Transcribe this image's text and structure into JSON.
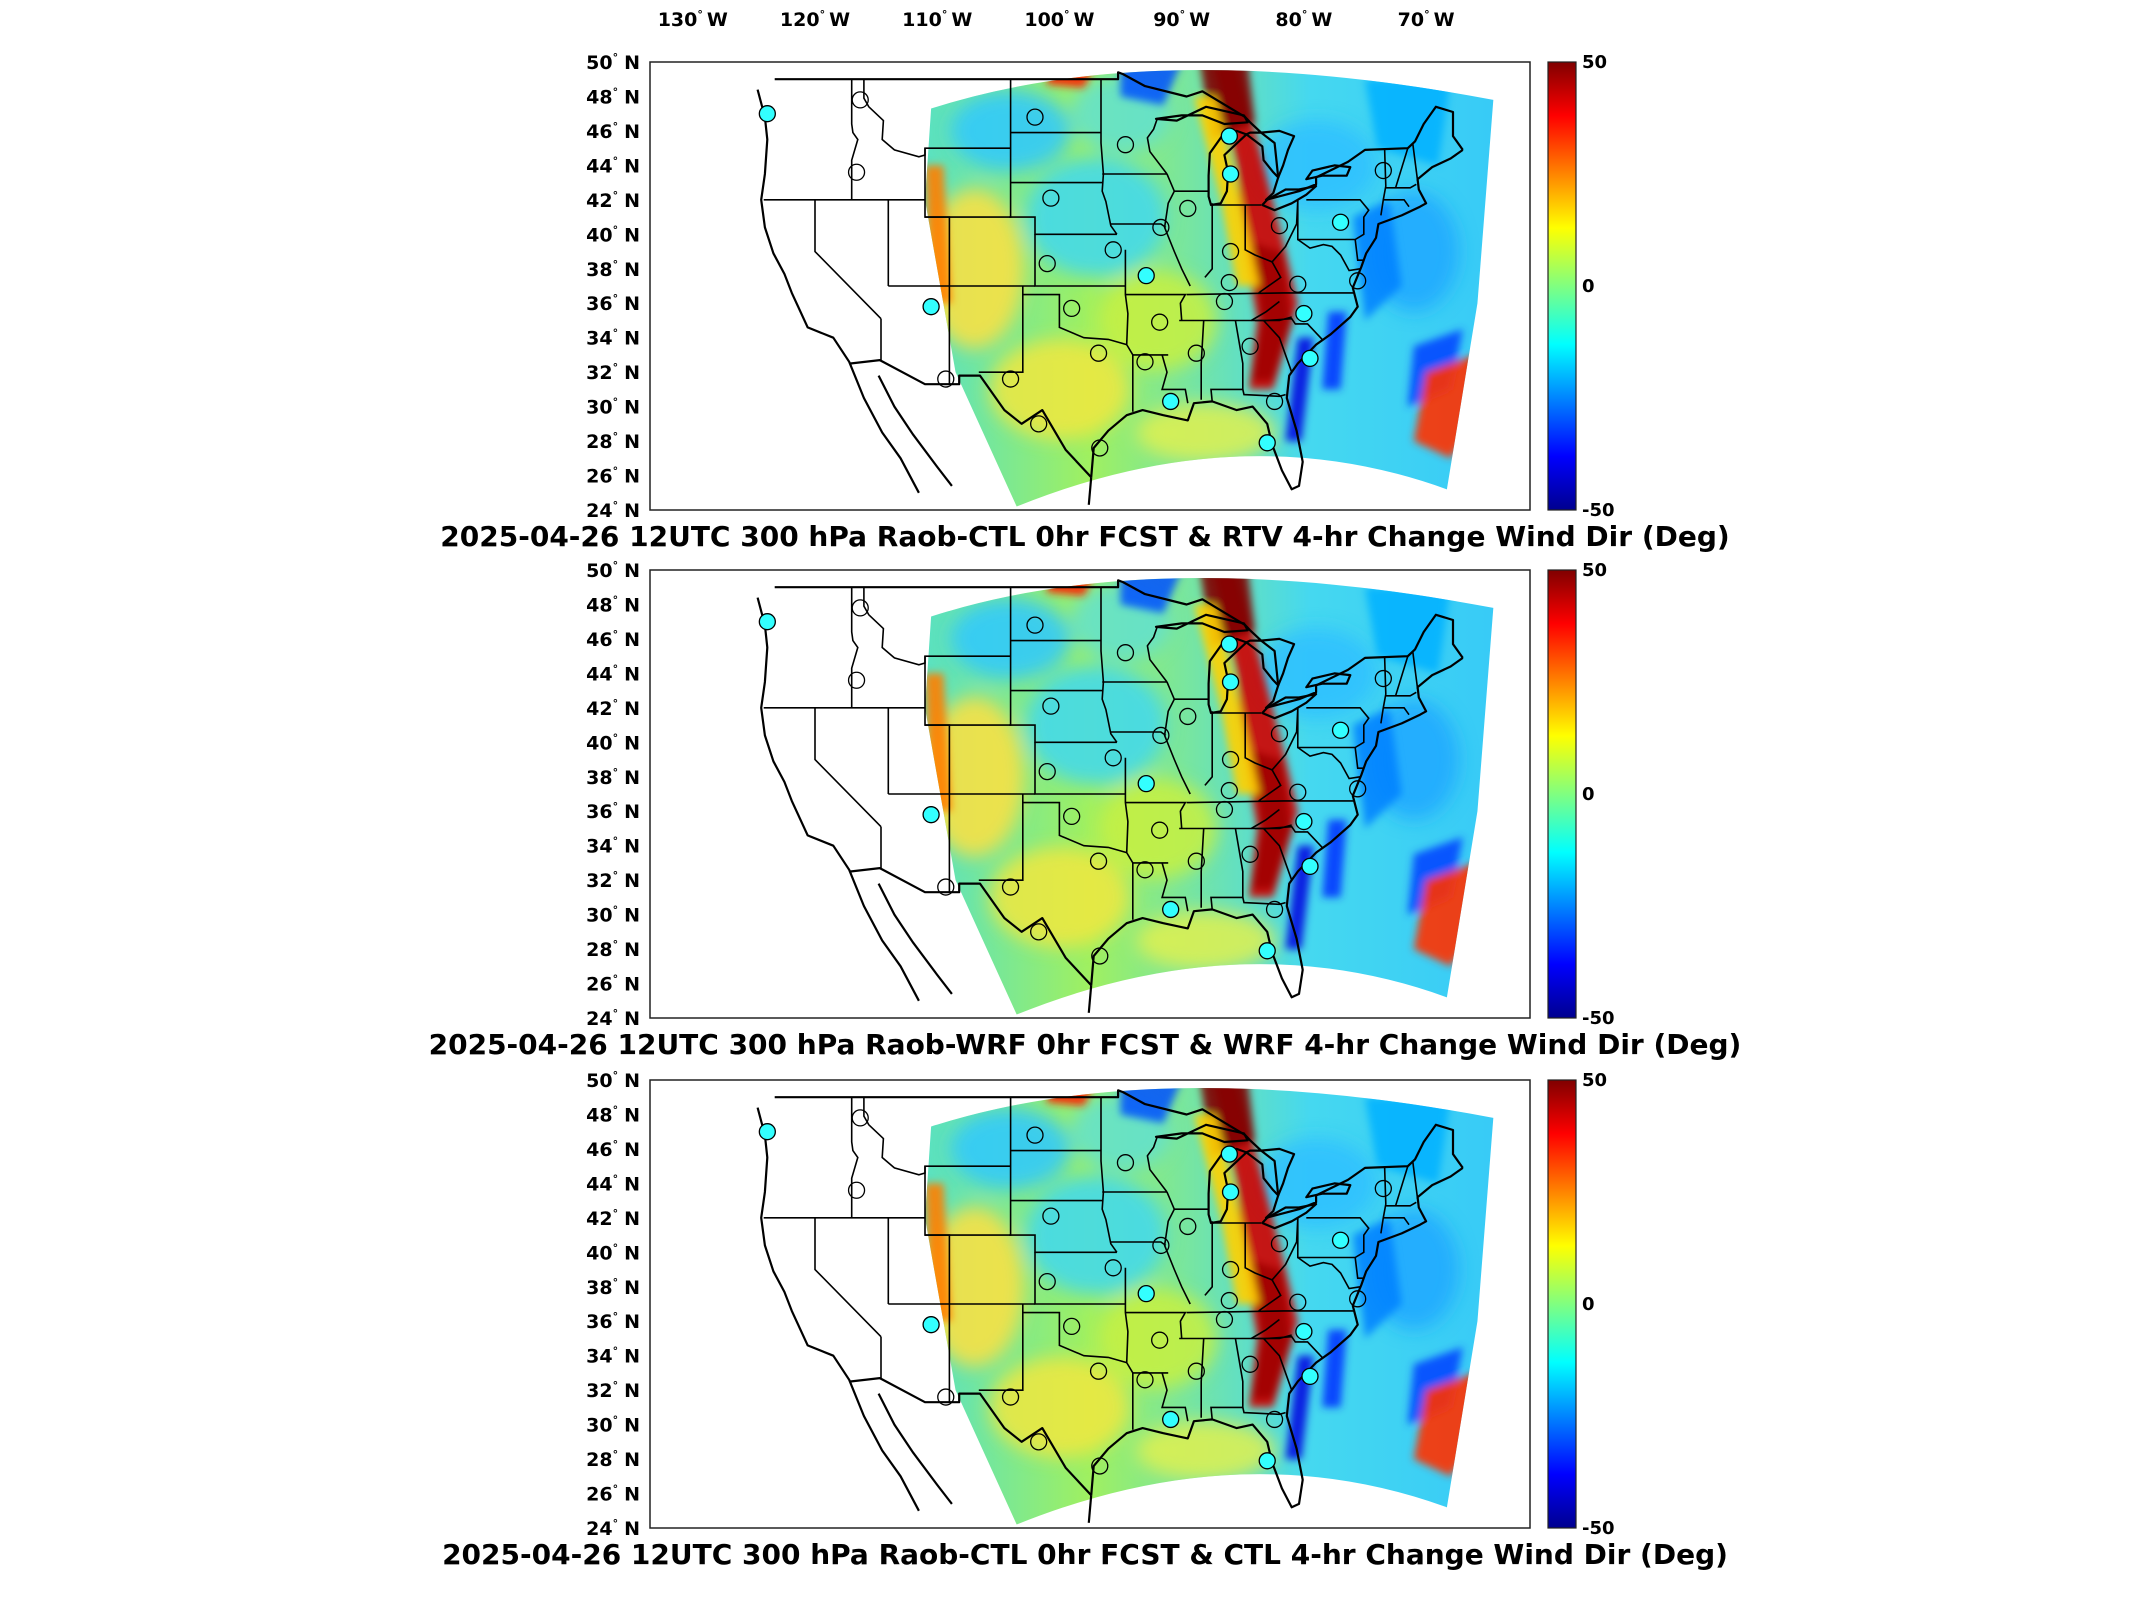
{
  "figure": {
    "lon_axis": {
      "labels": [
        {
          "deg": "130",
          "hemi": "W",
          "lon": -130
        },
        {
          "deg": "120",
          "hemi": "W",
          "lon": -120
        },
        {
          "deg": "110",
          "hemi": "W",
          "lon": -110
        },
        {
          "deg": "100",
          "hemi": "W",
          "lon": -100
        },
        {
          "deg": "90",
          "hemi": "W",
          "lon": -90
        },
        {
          "deg": "80",
          "hemi": "W",
          "lon": -80
        },
        {
          "deg": "70",
          "hemi": "W",
          "lon": -70
        }
      ]
    },
    "lat_axis": {
      "labels": [
        {
          "deg": "50",
          "hemi": "N",
          "lat": 50
        },
        {
          "deg": "48",
          "hemi": "N",
          "lat": 48
        },
        {
          "deg": "46",
          "hemi": "N",
          "lat": 46
        },
        {
          "deg": "44",
          "hemi": "N",
          "lat": 44
        },
        {
          "deg": "42",
          "hemi": "N",
          "lat": 42
        },
        {
          "deg": "40",
          "hemi": "N",
          "lat": 40
        },
        {
          "deg": "38",
          "hemi": "N",
          "lat": 38
        },
        {
          "deg": "36",
          "hemi": "N",
          "lat": 36
        },
        {
          "deg": "34",
          "hemi": "N",
          "lat": 34
        },
        {
          "deg": "32",
          "hemi": "N",
          "lat": 32
        },
        {
          "deg": "30",
          "hemi": "N",
          "lat": 30
        },
        {
          "deg": "28",
          "hemi": "N",
          "lat": 28
        },
        {
          "deg": "26",
          "hemi": "N",
          "lat": 26
        },
        {
          "deg": "24",
          "hemi": "N",
          "lat": 24
        }
      ]
    },
    "colorbar": {
      "colormap": "jet",
      "range": [
        -50,
        50
      ],
      "ticks": [
        "50",
        "0",
        "-50"
      ],
      "colors": [
        "#00008f",
        "#0000ff",
        "#00ffff",
        "#80ff80",
        "#ffff00",
        "#ff0000",
        "#800000"
      ]
    },
    "station_color": "#33ffff",
    "panels": [
      {
        "title": "2025-04-26 12UTC 300 hPa Raob-CTL 0hr FCST & RTV 4-hr Change Wind Dir (Deg)"
      },
      {
        "title": "2025-04-26 12UTC 300 hPa Raob-WRF 0hr FCST & WRF 4-hr Change Wind Dir (Deg)"
      },
      {
        "title": "2025-04-26 12UTC 300 hPa Raob-CTL 0hr FCST & CTL 4-hr Change Wind Dir (Deg)"
      }
    ],
    "stations": [
      {
        "id": "s1",
        "lon": -123.9,
        "lat": 47.0
      },
      {
        "id": "s2",
        "lon": -116.3,
        "lat": 47.8
      },
      {
        "id": "s3",
        "lon": -102.0,
        "lat": 46.8
      },
      {
        "id": "s4",
        "lon": -94.6,
        "lat": 45.2
      },
      {
        "id": "s5",
        "lon": -86.1,
        "lat": 45.7
      },
      {
        "id": "s6",
        "lon": -116.6,
        "lat": 43.6
      },
      {
        "id": "s7",
        "lon": -100.7,
        "lat": 42.1
      },
      {
        "id": "s8",
        "lon": -89.5,
        "lat": 41.5
      },
      {
        "id": "s9",
        "lon": -86.0,
        "lat": 43.5
      },
      {
        "id": "s10",
        "lon": -73.5,
        "lat": 43.7
      },
      {
        "id": "s11",
        "lon": -91.7,
        "lat": 40.4
      },
      {
        "id": "s12",
        "lon": -82.0,
        "lat": 40.5
      },
      {
        "id": "s13",
        "lon": -77.0,
        "lat": 40.7
      },
      {
        "id": "s14",
        "lon": -101.0,
        "lat": 38.3
      },
      {
        "id": "s15",
        "lon": -95.6,
        "lat": 39.1
      },
      {
        "id": "s16",
        "lon": -86.0,
        "lat": 39.0
      },
      {
        "id": "s17",
        "lon": -92.9,
        "lat": 37.6
      },
      {
        "id": "s18",
        "lon": -86.1,
        "lat": 37.2
      },
      {
        "id": "s19",
        "lon": -80.5,
        "lat": 37.1
      },
      {
        "id": "s20",
        "lon": -75.6,
        "lat": 37.3
      },
      {
        "id": "s21",
        "lon": -110.5,
        "lat": 35.8
      },
      {
        "id": "s22",
        "lon": -99.0,
        "lat": 35.7
      },
      {
        "id": "s23",
        "lon": -91.8,
        "lat": 34.9
      },
      {
        "id": "s24",
        "lon": -86.5,
        "lat": 36.1
      },
      {
        "id": "s25",
        "lon": -80.0,
        "lat": 35.4
      },
      {
        "id": "s26",
        "lon": -96.8,
        "lat": 33.1
      },
      {
        "id": "s27",
        "lon": -88.8,
        "lat": 33.1
      },
      {
        "id": "s28",
        "lon": -84.4,
        "lat": 33.5
      },
      {
        "id": "s29",
        "lon": -79.5,
        "lat": 32.8
      },
      {
        "id": "s30",
        "lon": -109.3,
        "lat": 31.6
      },
      {
        "id": "s31",
        "lon": -104.0,
        "lat": 31.6
      },
      {
        "id": "s32",
        "lon": -93.0,
        "lat": 32.6
      },
      {
        "id": "s33",
        "lon": -90.9,
        "lat": 30.3
      },
      {
        "id": "s34",
        "lon": -82.4,
        "lat": 30.3
      },
      {
        "id": "s35",
        "lon": -101.7,
        "lat": 29.0
      },
      {
        "id": "s36",
        "lon": -96.7,
        "lat": 27.6
      },
      {
        "id": "s37",
        "lon": -83.0,
        "lat": 27.9
      }
    ]
  }
}
